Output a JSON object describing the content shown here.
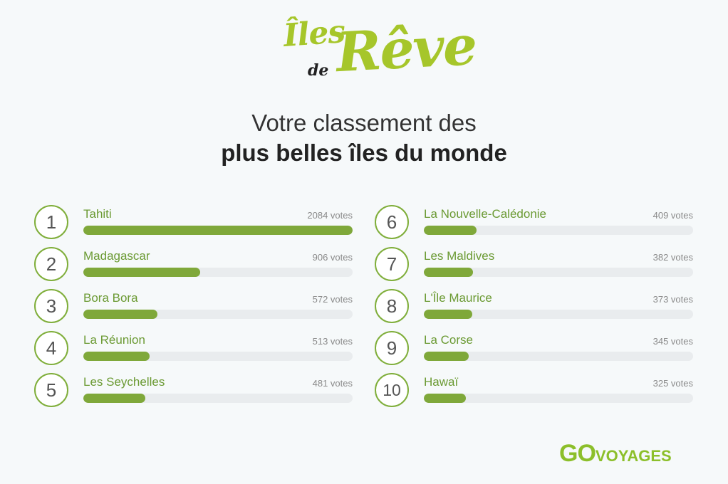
{
  "logo": {
    "iles": "Îles",
    "de": "de",
    "reve": "Rêve"
  },
  "title_line1": "Votre classement des",
  "title_line2": "plus belles îles du monde",
  "brand": {
    "go": "GO",
    "voyages": "VOYAGES"
  },
  "colors": {
    "accent": "#7fa83a",
    "logo_green": "#a6c62a",
    "track": "#e9ecee"
  },
  "chart_data": {
    "type": "bar",
    "orientation": "horizontal",
    "max": 2084,
    "items": [
      {
        "rank": "1",
        "name": "Tahiti",
        "value": 2084,
        "label": "2084 votes"
      },
      {
        "rank": "2",
        "name": "Madagascar",
        "value": 906,
        "label": "906 votes"
      },
      {
        "rank": "3",
        "name": "Bora Bora",
        "value": 572,
        "label": "572 votes"
      },
      {
        "rank": "4",
        "name": "La Réunion",
        "value": 513,
        "label": "513 votes"
      },
      {
        "rank": "5",
        "name": "Les Seychelles",
        "value": 481,
        "label": "481 votes"
      },
      {
        "rank": "6",
        "name": "La Nouvelle-Calédonie",
        "value": 409,
        "label": "409 votes"
      },
      {
        "rank": "7",
        "name": "Les Maldives",
        "value": 382,
        "label": "382 votes"
      },
      {
        "rank": "8",
        "name": "L'Île Maurice",
        "value": 373,
        "label": "373 votes"
      },
      {
        "rank": "9",
        "name": "La Corse",
        "value": 345,
        "label": "345 votes"
      },
      {
        "rank": "10",
        "name": "Hawaï",
        "value": 325,
        "label": "325 votes"
      }
    ]
  }
}
